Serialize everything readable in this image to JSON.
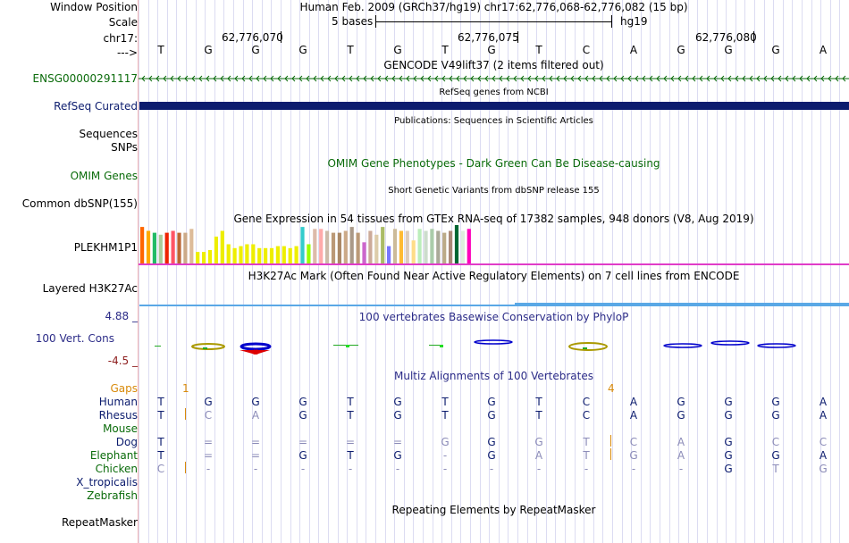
{
  "header": {
    "window_position_label": "Window Position",
    "window_position_value": "Human Feb. 2009 (GRCh37/hg19)   chr17:62,776,068-62,776,082 (15 bp)",
    "scale_label": "Scale",
    "scale_size": "5 bases",
    "scale_assembly": "hg19",
    "chrom_label": "chr17:",
    "coords": [
      "62,776,070",
      "62,776,075",
      "62,776,080"
    ],
    "strand_label": "--->",
    "bases": [
      "T",
      "G",
      "G",
      "G",
      "T",
      "G",
      "T",
      "G",
      "T",
      "C",
      "A",
      "G",
      "G",
      "G",
      "A"
    ]
  },
  "tracks": {
    "gencode": {
      "title": "GENCODE V49lift37 (2 items filtered out)",
      "item_label": "ENSG00000291117"
    },
    "refseq": {
      "title": "RefSeq genes from NCBI",
      "label": "RefSeq Curated"
    },
    "publications": {
      "title": "Publications: Sequences in Scientific Articles",
      "label1": "Sequences",
      "label2": "SNPs"
    },
    "omim": {
      "label": "OMIM Genes",
      "title": "OMIM Gene Phenotypes - Dark Green Can Be Disease-causing"
    },
    "dbsnp": {
      "title": "Short Genetic Variants from dbSNP release 155",
      "label": "Common dbSNP(155)"
    },
    "gtex": {
      "title": "Gene Expression in 54 tissues from GTEx RNA-seq of 17382 samples, 948 donors (V8, Aug 2019)",
      "label": "PLEKHM1P1"
    },
    "h3k27ac": {
      "title": "H3K27Ac Mark (Often Found Near Active Regulatory Elements) on 7 cell lines from ENCODE",
      "label": "Layered H3K27Ac"
    },
    "phylop": {
      "title": "100 vertebrates Basewise Conservation by PhyloP",
      "label": "100 Vert. Cons",
      "max": "4.88 _",
      "min": "-4.5 _"
    },
    "multiz": {
      "title": "Multiz Alignments of 100 Vertebrates",
      "gaps_label": "Gaps",
      "gap_counts": [
        "1",
        "4"
      ],
      "species": [
        {
          "name": "Human",
          "bases": [
            "T",
            "G",
            "G",
            "G",
            "T",
            "G",
            "T",
            "G",
            "T",
            "C",
            "A",
            "G",
            "G",
            "G",
            "A"
          ]
        },
        {
          "name": "Rhesus",
          "bases": [
            "T",
            "C",
            "A",
            "G",
            "T",
            "G",
            "T",
            "G",
            "T",
            "C",
            "A",
            "G",
            "G",
            "G",
            "A"
          ]
        },
        {
          "name": "Mouse",
          "bases": []
        },
        {
          "name": "Dog",
          "bases": [
            "T",
            "=",
            "=",
            "=",
            "=",
            "=",
            "G",
            "G",
            "G",
            "T",
            "C",
            "A",
            "G",
            "C",
            "C"
          ]
        },
        {
          "name": "Elephant",
          "bases": [
            "T",
            "=",
            "=",
            "G",
            "T",
            "G",
            "-",
            "G",
            "A",
            "T",
            "G",
            "A",
            "G",
            "G",
            "A"
          ]
        },
        {
          "name": "Chicken",
          "bases": [
            "C",
            "-",
            "-",
            "-",
            "-",
            "-",
            "-",
            "-",
            "-",
            "-",
            "-",
            "-",
            "G",
            "T",
            "G"
          ]
        },
        {
          "name": "X_tropicalis",
          "bases": []
        },
        {
          "name": "Zebrafish",
          "bases": []
        }
      ]
    },
    "repeatmasker": {
      "title": "Repeating Elements by RepeatMasker",
      "label": "RepeatMasker"
    }
  },
  "gtex_bars": [
    {
      "value": 0.95,
      "color": "#FF6600"
    },
    {
      "value": 0.85,
      "color": "#FFAA00"
    },
    {
      "value": 0.8,
      "color": "#22BB66"
    },
    {
      "value": 0.75,
      "color": "#AACC99"
    },
    {
      "value": 0.8,
      "color": "#EE2200"
    },
    {
      "value": 0.85,
      "color": "#FF5566"
    },
    {
      "value": 0.8,
      "color": "#BB6633"
    },
    {
      "value": 0.8,
      "color": "#CCAA88"
    },
    {
      "value": 0.9,
      "color": "#DDBB99"
    },
    {
      "value": 0.3,
      "color": "#EEEE00"
    },
    {
      "value": 0.3,
      "color": "#EEEE00"
    },
    {
      "value": 0.35,
      "color": "#EEEE00"
    },
    {
      "value": 0.7,
      "color": "#EEEE00"
    },
    {
      "value": 0.85,
      "color": "#EEEE00"
    },
    {
      "value": 0.5,
      "color": "#EEEE00"
    },
    {
      "value": 0.4,
      "color": "#EEEE00"
    },
    {
      "value": 0.45,
      "color": "#EEEE00"
    },
    {
      "value": 0.5,
      "color": "#EEEE00"
    },
    {
      "value": 0.5,
      "color": "#EEEE00"
    },
    {
      "value": 0.4,
      "color": "#EEEE00"
    },
    {
      "value": 0.4,
      "color": "#EEEE00"
    },
    {
      "value": 0.4,
      "color": "#EEEE00"
    },
    {
      "value": 0.45,
      "color": "#EEEE00"
    },
    {
      "value": 0.45,
      "color": "#EEEE00"
    },
    {
      "value": 0.4,
      "color": "#EEEE00"
    },
    {
      "value": 0.45,
      "color": "#EEEE00"
    },
    {
      "value": 0.95,
      "color": "#33CCCC"
    },
    {
      "value": 0.5,
      "color": "#99FF00"
    },
    {
      "value": 0.9,
      "color": "#DDBBAA"
    },
    {
      "value": 0.9,
      "color": "#FFAAAA"
    },
    {
      "value": 0.85,
      "color": "#CCBBAA"
    },
    {
      "value": 0.8,
      "color": "#BB9977"
    },
    {
      "value": 0.8,
      "color": "#AA8866"
    },
    {
      "value": 0.85,
      "color": "#CCAA88"
    },
    {
      "value": 0.95,
      "color": "#AA9988"
    },
    {
      "value": 0.8,
      "color": "#BB9977"
    },
    {
      "value": 0.55,
      "color": "#CC66CC"
    },
    {
      "value": 0.85,
      "color": "#CCAA99"
    },
    {
      "value": 0.75,
      "color": "#DDCCAA"
    },
    {
      "value": 0.95,
      "color": "#AABB66"
    },
    {
      "value": 0.45,
      "color": "#7777FF"
    },
    {
      "value": 0.9,
      "color": "#CCBB99"
    },
    {
      "value": 0.85,
      "color": "#FFBB33"
    },
    {
      "value": 0.85,
      "color": "#DDCCBB"
    },
    {
      "value": 0.6,
      "color": "#FFDD88"
    },
    {
      "value": 0.9,
      "color": "#BBEEBB"
    },
    {
      "value": 0.85,
      "color": "#CCDDCC"
    },
    {
      "value": 0.9,
      "color": "#AACCAA"
    },
    {
      "value": 0.85,
      "color": "#AAAA99"
    },
    {
      "value": 0.8,
      "color": "#BBAA88"
    },
    {
      "value": 0.85,
      "color": "#AA8877"
    },
    {
      "value": 1.0,
      "color": "#006633"
    },
    {
      "value": 0.85,
      "color": "#DDEEDD"
    },
    {
      "value": 0.9,
      "color": "#FF00BB"
    }
  ],
  "colors": {
    "gencode": "#0A6B0A",
    "refseq": "#0C1C6E",
    "omim": "#0A6B0A",
    "phylop": "#2C2C88",
    "gaps": "#D88A0A",
    "h3k27ac_line": "#5AA8E6",
    "gtex_baseline": "#E03CC8",
    "species_label": "#0C1C6E",
    "match_base": "#0C1C6E",
    "mismatch_base": "#8C8CB8"
  }
}
